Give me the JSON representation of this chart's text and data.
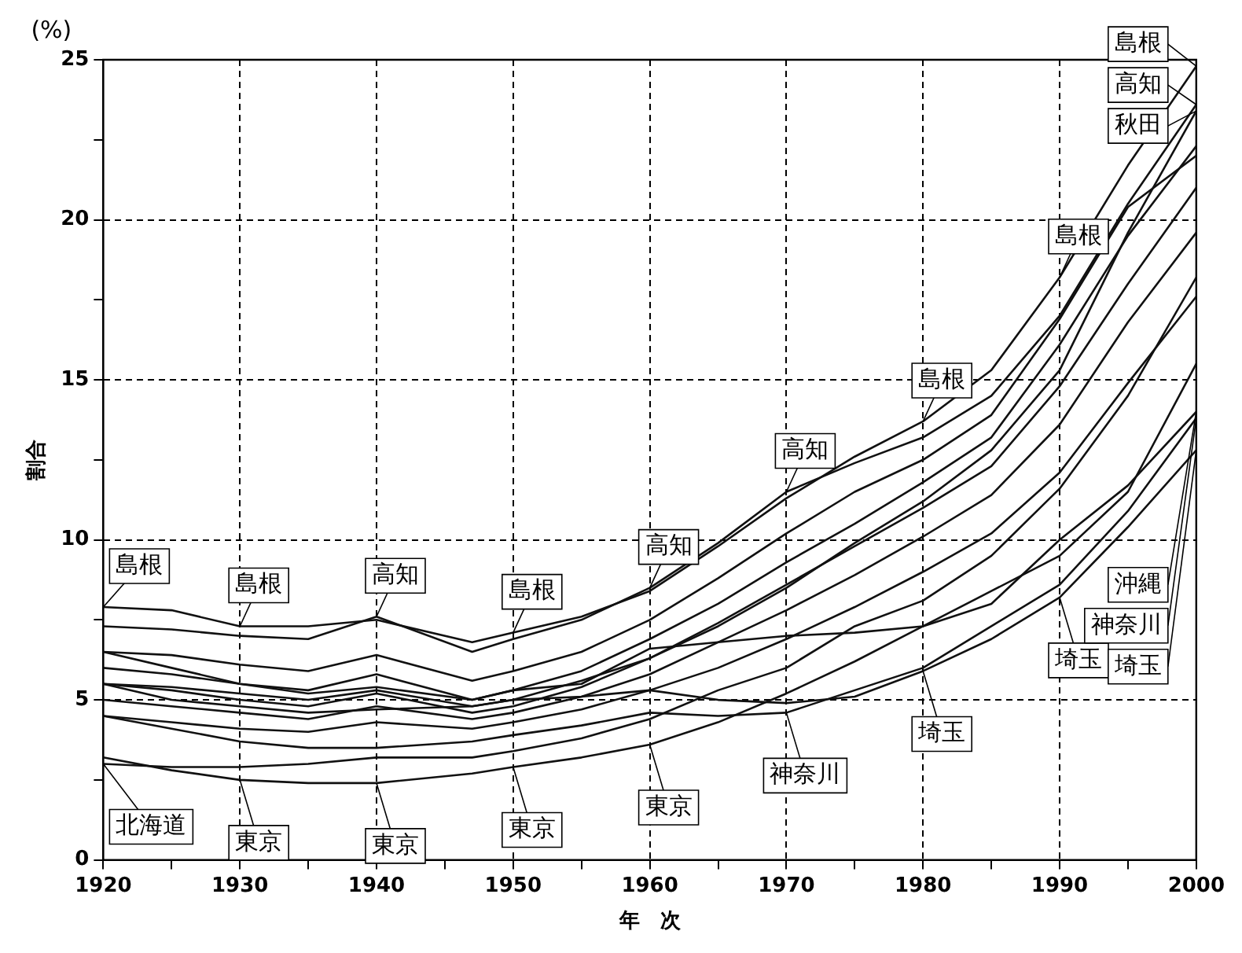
{
  "chart_data": {
    "type": "line",
    "xlabel": "年　次",
    "ylabel": "割合",
    "annotations": [
      "(%)",
      {
        "text": "島根",
        "x": 1920,
        "y": 7.9
      },
      {
        "text": "島根",
        "x": 1930,
        "y": 7.3
      },
      {
        "text": "高知",
        "x": 1940,
        "y": 7.6
      },
      {
        "text": "島根",
        "x": 1950,
        "y": 7.1
      },
      {
        "text": "高知",
        "x": 1960,
        "y": 8.5
      },
      {
        "text": "高知",
        "x": 1970,
        "y": 11.5
      },
      {
        "text": "島根",
        "x": 1980,
        "y": 13.7
      },
      {
        "text": "島根",
        "x": 1990,
        "y": 18.2
      },
      {
        "text": "島根",
        "x": 2000,
        "y": 24.8
      },
      {
        "text": "高知",
        "x": 2000,
        "y": 23.6
      },
      {
        "text": "秋田",
        "x": 2000,
        "y": 23.4
      },
      {
        "text": "北海道",
        "x": 1920,
        "y": 3.0
      },
      {
        "text": "東京",
        "x": 1930,
        "y": 2.5
      },
      {
        "text": "東京",
        "x": 1940,
        "y": 2.4
      },
      {
        "text": "東京",
        "x": 1950,
        "y": 2.9
      },
      {
        "text": "東京",
        "x": 1960,
        "y": 3.6
      },
      {
        "text": "神奈川",
        "x": 1970,
        "y": 4.6
      },
      {
        "text": "埼玉",
        "x": 1980,
        "y": 5.9
      },
      {
        "text": "埼玉",
        "x": 1990,
        "y": 8.2
      },
      {
        "text": "沖縄",
        "x": 2000,
        "y": 14.0
      },
      {
        "text": "神奈川",
        "x": 2000,
        "y": 13.8
      },
      {
        "text": "埼玉",
        "x": 2000,
        "y": 12.8
      }
    ],
    "x": [
      1920,
      1925,
      1930,
      1935,
      1940,
      1947,
      1950,
      1955,
      1960,
      1965,
      1970,
      1975,
      1980,
      1985,
      1990,
      1995,
      2000
    ],
    "xlim": [
      1920,
      2000
    ],
    "xticks": [
      1920,
      {
        "value": 1925,
        "label": null
      },
      1930,
      {
        "value": 1935,
        "label": null
      },
      1940,
      {
        "value": 1945,
        "label": null
      },
      1950,
      {
        "value": 1955,
        "label": null
      },
      1960,
      {
        "value": 1965,
        "label": null
      },
      1970,
      {
        "value": 1975,
        "label": null
      },
      1980,
      {
        "value": 1985,
        "label": null
      },
      1990,
      {
        "value": 1995,
        "label": null
      },
      2000
    ],
    "ylim": [
      0,
      25
    ],
    "yticks": [
      0,
      {
        "value": 2.5,
        "label": null
      },
      5,
      {
        "value": 7.5,
        "label": null
      },
      10,
      {
        "value": 12.5,
        "label": null
      },
      15,
      {
        "value": 17.5,
        "label": null
      },
      20,
      {
        "value": 22.5,
        "label": null
      },
      25
    ],
    "grid": true,
    "legend": false,
    "marker": "none",
    "line_style": "solid",
    "series": [
      {
        "color": "#111111",
        "values": [
          7.9,
          7.8,
          7.3,
          7.3,
          7.5,
          6.8,
          7.1,
          7.6,
          8.4,
          9.8,
          11.3,
          12.6,
          13.7,
          15.3,
          18.2,
          21.7,
          24.8
        ]
      },
      {
        "color": "#111111",
        "values": [
          7.3,
          7.2,
          7.0,
          6.9,
          7.6,
          6.5,
          6.9,
          7.5,
          8.5,
          9.9,
          11.5,
          12.4,
          13.2,
          14.5,
          17.0,
          20.5,
          23.6
        ]
      },
      {
        "color": "#111111",
        "values": [
          5.5,
          5.4,
          5.2,
          5.0,
          5.3,
          4.8,
          5.0,
          5.6,
          6.3,
          7.3,
          8.5,
          9.9,
          11.2,
          12.8,
          15.3,
          19.6,
          23.4
        ]
      },
      {
        "color": "#111111",
        "values": [
          6.5,
          6.4,
          6.1,
          5.9,
          6.4,
          5.6,
          5.9,
          6.5,
          7.5,
          8.8,
          10.2,
          11.5,
          12.5,
          13.9,
          16.9,
          20.4,
          22.0
        ]
      },
      {
        "color": "#111111",
        "values": [
          6.0,
          5.8,
          5.5,
          5.3,
          5.8,
          5.0,
          5.3,
          5.9,
          6.9,
          8.0,
          9.3,
          10.5,
          11.8,
          13.2,
          16.1,
          19.5,
          22.3
        ]
      },
      {
        "color": "#111111",
        "values": [
          5.5,
          5.3,
          5.0,
          4.8,
          5.2,
          4.6,
          4.8,
          5.4,
          6.3,
          7.4,
          8.6,
          9.8,
          11.0,
          12.3,
          14.8,
          18.0,
          21.0
        ]
      },
      {
        "color": "#111111",
        "values": [
          5.0,
          4.8,
          4.6,
          4.4,
          4.8,
          4.4,
          4.6,
          5.1,
          5.8,
          6.8,
          7.8,
          8.9,
          10.1,
          11.4,
          13.6,
          16.8,
          19.6
        ]
      },
      {
        "color": "#111111",
        "values": [
          4.5,
          4.3,
          4.1,
          4.0,
          4.3,
          4.1,
          4.3,
          4.7,
          5.3,
          6.0,
          6.9,
          7.9,
          9.0,
          10.2,
          12.1,
          14.9,
          17.6
        ]
      },
      {
        "color": "#111111",
        "values": [
          6.5,
          6.0,
          5.5,
          5.2,
          5.4,
          5.0,
          5.3,
          5.5,
          6.6,
          6.8,
          7.0,
          7.1,
          7.3,
          8.0,
          10.0,
          11.7,
          14.0
        ]
      },
      {
        "color": "#111111",
        "values": [
          5.5,
          5.0,
          4.8,
          4.6,
          4.7,
          4.8,
          5.0,
          5.1,
          5.3,
          5.0,
          4.9,
          5.1,
          5.9,
          6.9,
          8.2,
          10.4,
          12.8
        ]
      },
      {
        "color": "#111111",
        "values": [
          4.5,
          4.1,
          3.7,
          3.5,
          3.5,
          3.7,
          3.9,
          4.2,
          4.6,
          4.5,
          4.6,
          5.3,
          6.0,
          7.3,
          8.6,
          10.9,
          13.8
        ]
      },
      {
        "color": "#111111",
        "values": [
          3.0,
          2.9,
          2.9,
          3.0,
          3.2,
          3.2,
          3.4,
          3.8,
          4.4,
          5.3,
          6.0,
          7.3,
          8.1,
          9.5,
          11.6,
          14.5,
          18.2
        ]
      },
      {
        "color": "#111111",
        "values": [
          3.2,
          2.8,
          2.5,
          2.4,
          2.4,
          2.7,
          2.9,
          3.2,
          3.6,
          4.3,
          5.2,
          6.2,
          7.3,
          8.4,
          9.5,
          11.5,
          15.5
        ]
      }
    ]
  }
}
